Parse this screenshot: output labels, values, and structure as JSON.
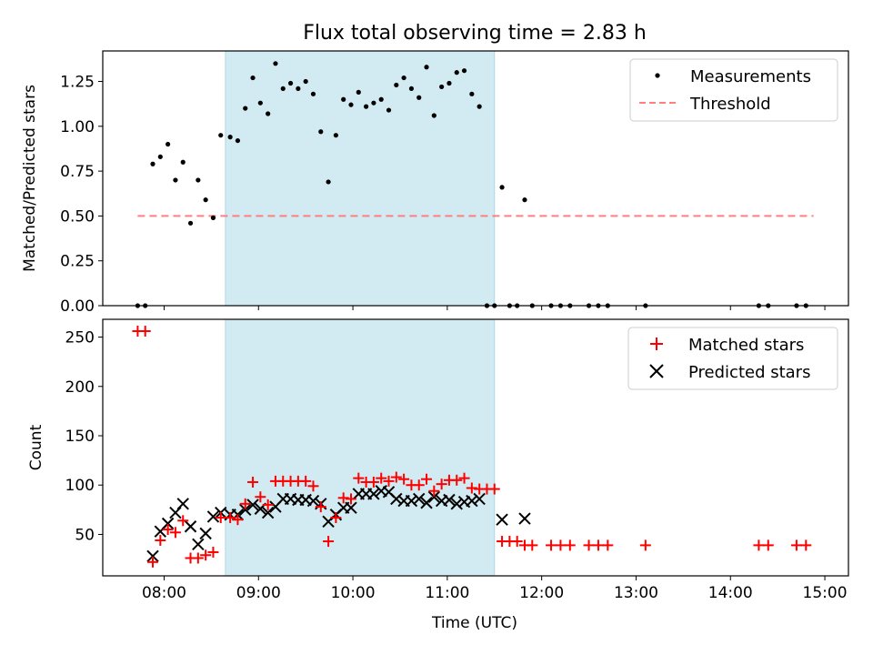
{
  "title": "Flux total observing time = 2.83 h",
  "colors": {
    "shade": "#add8e6",
    "measurement": "#000000",
    "threshold": "#ff7f7f",
    "matched": "#ff0000",
    "predicted": "#000000"
  },
  "chart_data": [
    {
      "type": "scatter",
      "ylabel": "Matched/Predicted stars",
      "xlim": [
        7.35,
        15.25
      ],
      "ylim": [
        0,
        1.42
      ],
      "yticks": [
        {
          "value": 0.0,
          "label": "0.00"
        },
        {
          "value": 0.25,
          "label": "0.25"
        },
        {
          "value": 0.5,
          "label": "0.50"
        },
        {
          "value": 0.75,
          "label": "0.75"
        },
        {
          "value": 1.0,
          "label": "1.00"
        },
        {
          "value": 1.25,
          "label": "1.25"
        }
      ],
      "shaded_span": [
        8.65,
        11.5
      ],
      "threshold": {
        "value": 0.5,
        "x_range": [
          7.72,
          14.88
        ]
      },
      "legend": {
        "position": "top-right",
        "measurements": "Measurements",
        "threshold": "Threshold"
      },
      "measurements": [
        [
          7.72,
          0.0
        ],
        [
          7.8,
          0.0
        ],
        [
          7.88,
          0.79
        ],
        [
          7.96,
          0.83
        ],
        [
          8.04,
          0.9
        ],
        [
          8.12,
          0.7
        ],
        [
          8.2,
          0.8
        ],
        [
          8.28,
          0.46
        ],
        [
          8.36,
          0.7
        ],
        [
          8.44,
          0.59
        ],
        [
          8.52,
          0.49
        ],
        [
          8.6,
          0.95
        ],
        [
          8.7,
          0.94
        ],
        [
          8.78,
          0.92
        ],
        [
          8.86,
          1.1
        ],
        [
          8.94,
          1.27
        ],
        [
          9.02,
          1.13
        ],
        [
          9.1,
          1.07
        ],
        [
          9.18,
          1.35
        ],
        [
          9.26,
          1.21
        ],
        [
          9.34,
          1.24
        ],
        [
          9.42,
          1.21
        ],
        [
          9.5,
          1.25
        ],
        [
          9.58,
          1.18
        ],
        [
          9.66,
          0.97
        ],
        [
          9.74,
          0.69
        ],
        [
          9.82,
          0.95
        ],
        [
          9.9,
          1.15
        ],
        [
          9.98,
          1.12
        ],
        [
          10.06,
          1.19
        ],
        [
          10.14,
          1.11
        ],
        [
          10.22,
          1.13
        ],
        [
          10.3,
          1.15
        ],
        [
          10.38,
          1.09
        ],
        [
          10.46,
          1.23
        ],
        [
          10.54,
          1.27
        ],
        [
          10.62,
          1.21
        ],
        [
          10.7,
          1.16
        ],
        [
          10.78,
          1.33
        ],
        [
          10.86,
          1.06
        ],
        [
          10.94,
          1.22
        ],
        [
          11.02,
          1.24
        ],
        [
          11.1,
          1.3
        ],
        [
          11.18,
          1.31
        ],
        [
          11.26,
          1.18
        ],
        [
          11.34,
          1.11
        ],
        [
          11.42,
          0.0
        ],
        [
          11.5,
          0.0
        ],
        [
          11.58,
          0.66
        ],
        [
          11.66,
          0.0
        ],
        [
          11.74,
          0.0
        ],
        [
          11.82,
          0.59
        ],
        [
          11.9,
          0.0
        ],
        [
          12.1,
          0.0
        ],
        [
          12.2,
          0.0
        ],
        [
          12.3,
          0.0
        ],
        [
          12.5,
          0.0
        ],
        [
          12.6,
          0.0
        ],
        [
          12.7,
          0.0
        ],
        [
          13.1,
          0.0
        ],
        [
          14.3,
          0.0
        ],
        [
          14.4,
          0.0
        ],
        [
          14.7,
          0.0
        ],
        [
          14.8,
          0.0
        ]
      ]
    },
    {
      "type": "scatter",
      "xlabel": "Time (UTC)",
      "ylabel": "Count",
      "xlim": [
        7.35,
        15.25
      ],
      "ylim": [
        8,
        268
      ],
      "yticks": [
        {
          "value": 50,
          "label": "50"
        },
        {
          "value": 100,
          "label": "100"
        },
        {
          "value": 150,
          "label": "150"
        },
        {
          "value": 200,
          "label": "200"
        },
        {
          "value": 250,
          "label": "250"
        }
      ],
      "xticks": [
        {
          "value": 8,
          "label": "08:00"
        },
        {
          "value": 9,
          "label": "09:00"
        },
        {
          "value": 10,
          "label": "10:00"
        },
        {
          "value": 11,
          "label": "11:00"
        },
        {
          "value": 12,
          "label": "12:00"
        },
        {
          "value": 13,
          "label": "13:00"
        },
        {
          "value": 14,
          "label": "14:00"
        },
        {
          "value": 15,
          "label": "15:00"
        }
      ],
      "shaded_span": [
        8.65,
        11.5
      ],
      "legend": {
        "position": "top-right",
        "matched": "Matched stars",
        "predicted": "Predicted stars"
      },
      "series": [
        {
          "name": "Matched stars",
          "marker": "+",
          "points": [
            [
              7.72,
              256
            ],
            [
              7.8,
              256
            ],
            [
              7.88,
              22
            ],
            [
              7.96,
              44
            ],
            [
              8.04,
              55
            ],
            [
              8.12,
              52
            ],
            [
              8.2,
              64
            ],
            [
              8.28,
              26
            ],
            [
              8.36,
              26
            ],
            [
              8.44,
              29
            ],
            [
              8.52,
              32
            ],
            [
              8.6,
              67
            ],
            [
              8.7,
              67
            ],
            [
              8.78,
              65
            ],
            [
              8.86,
              81
            ],
            [
              8.94,
              103
            ],
            [
              9.02,
              88
            ],
            [
              9.1,
              80
            ],
            [
              9.18,
              104
            ],
            [
              9.26,
              104
            ],
            [
              9.34,
              104
            ],
            [
              9.42,
              104
            ],
            [
              9.5,
              104
            ],
            [
              9.58,
              99
            ],
            [
              9.66,
              78
            ],
            [
              9.74,
              43
            ],
            [
              9.82,
              67
            ],
            [
              9.9,
              87
            ],
            [
              9.98,
              86
            ],
            [
              10.06,
              107
            ],
            [
              10.14,
              103
            ],
            [
              10.22,
              103
            ],
            [
              10.3,
              107
            ],
            [
              10.38,
              104
            ],
            [
              10.46,
              108
            ],
            [
              10.54,
              106
            ],
            [
              10.62,
              100
            ],
            [
              10.7,
              100
            ],
            [
              10.78,
              106
            ],
            [
              10.86,
              94
            ],
            [
              10.94,
              101
            ],
            [
              11.02,
              105
            ],
            [
              11.1,
              105
            ],
            [
              11.18,
              107
            ],
            [
              11.26,
              97
            ],
            [
              11.34,
              96
            ],
            [
              11.42,
              96
            ],
            [
              11.5,
              96
            ],
            [
              11.58,
              43
            ],
            [
              11.66,
              43
            ],
            [
              11.74,
              43
            ],
            [
              11.82,
              39
            ],
            [
              11.9,
              39
            ],
            [
              12.1,
              39
            ],
            [
              12.2,
              39
            ],
            [
              12.3,
              39
            ],
            [
              12.5,
              39
            ],
            [
              12.6,
              39
            ],
            [
              12.7,
              39
            ],
            [
              13.1,
              39
            ],
            [
              14.3,
              39
            ],
            [
              14.4,
              39
            ],
            [
              14.7,
              39
            ],
            [
              14.8,
              39
            ]
          ]
        },
        {
          "name": "Predicted stars",
          "marker": "x",
          "points": [
            [
              7.88,
              28
            ],
            [
              7.96,
              53
            ],
            [
              8.04,
              61
            ],
            [
              8.12,
              72
            ],
            [
              8.2,
              81
            ],
            [
              8.28,
              58
            ],
            [
              8.36,
              40
            ],
            [
              8.44,
              51
            ],
            [
              8.52,
              68
            ],
            [
              8.6,
              72
            ],
            [
              8.7,
              70
            ],
            [
              8.78,
              70
            ],
            [
              8.86,
              75
            ],
            [
              8.94,
              80
            ],
            [
              9.02,
              76
            ],
            [
              9.1,
              72
            ],
            [
              9.18,
              78
            ],
            [
              9.26,
              86
            ],
            [
              9.34,
              86
            ],
            [
              9.42,
              85
            ],
            [
              9.5,
              85
            ],
            [
              9.58,
              84
            ],
            [
              9.66,
              81
            ],
            [
              9.74,
              63
            ],
            [
              9.82,
              70
            ],
            [
              9.9,
              77
            ],
            [
              9.98,
              77
            ],
            [
              10.06,
              91
            ],
            [
              10.14,
              91
            ],
            [
              10.22,
              91
            ],
            [
              10.3,
              94
            ],
            [
              10.38,
              93
            ],
            [
              10.46,
              86
            ],
            [
              10.54,
              84
            ],
            [
              10.62,
              84
            ],
            [
              10.7,
              86
            ],
            [
              10.78,
              82
            ],
            [
              10.86,
              88
            ],
            [
              10.94,
              84
            ],
            [
              11.02,
              85
            ],
            [
              11.1,
              81
            ],
            [
              11.18,
              83
            ],
            [
              11.26,
              84
            ],
            [
              11.34,
              86
            ],
            [
              11.58,
              65
            ],
            [
              11.82,
              66
            ]
          ]
        }
      ]
    }
  ]
}
